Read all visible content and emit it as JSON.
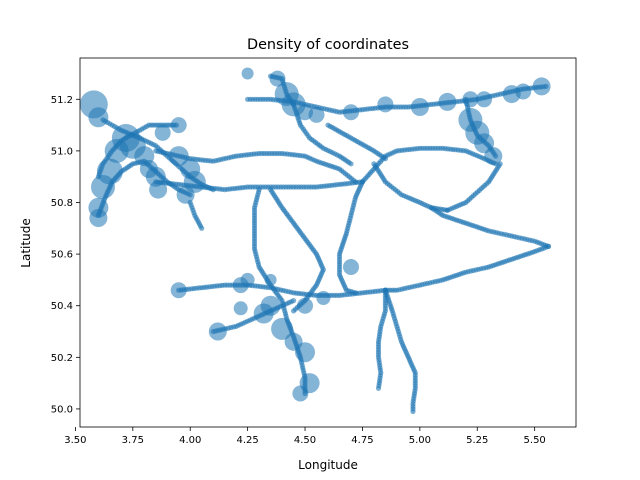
{
  "chart_data": {
    "type": "scatter",
    "title": "Density of coordinates",
    "xlabel": "Longitude",
    "ylabel": "Latitude",
    "xlim": [
      3.52,
      5.68
    ],
    "ylim": [
      49.93,
      51.36
    ],
    "xticks": [
      "3.50",
      "3.75",
      "4.00",
      "4.25",
      "4.50",
      "4.75",
      "5.00",
      "5.25",
      "5.50"
    ],
    "yticks": [
      "50.0",
      "50.2",
      "50.4",
      "50.6",
      "50.8",
      "51.0",
      "51.2"
    ],
    "grid": false,
    "legend": "none",
    "colors": {
      "points": "#1f77b4"
    },
    "routes": [
      [
        [
          3.62,
          51.12
        ],
        [
          3.7,
          51.08
        ],
        [
          3.78,
          51.05
        ],
        [
          3.85,
          51.02
        ],
        [
          3.9,
          50.98
        ],
        [
          3.95,
          50.94
        ],
        [
          4.0,
          50.9
        ],
        [
          4.05,
          50.87
        ],
        [
          4.1,
          50.85
        ]
      ],
      [
        [
          3.6,
          50.9
        ],
        [
          3.62,
          50.95
        ],
        [
          3.66,
          51.0
        ],
        [
          3.7,
          51.04
        ],
        [
          3.74,
          51.06
        ],
        [
          3.78,
          51.08
        ],
        [
          3.82,
          51.1
        ],
        [
          3.86,
          51.1
        ],
        [
          3.9,
          51.1
        ],
        [
          3.94,
          51.1
        ]
      ],
      [
        [
          3.6,
          50.75
        ],
        [
          3.63,
          50.82
        ],
        [
          3.66,
          50.88
        ],
        [
          3.7,
          50.92
        ],
        [
          3.75,
          50.95
        ],
        [
          3.8,
          50.96
        ],
        [
          3.85,
          50.92
        ],
        [
          3.9,
          50.88
        ],
        [
          3.95,
          50.85
        ],
        [
          4.0,
          50.83
        ]
      ],
      [
        [
          3.85,
          51.0
        ],
        [
          3.9,
          50.99
        ],
        [
          4.0,
          50.97
        ],
        [
          4.1,
          50.96
        ],
        [
          4.2,
          50.98
        ],
        [
          4.3,
          50.99
        ],
        [
          4.4,
          50.99
        ],
        [
          4.5,
          50.98
        ],
        [
          4.55,
          50.96
        ],
        [
          4.65,
          50.93
        ],
        [
          4.72,
          50.88
        ]
      ],
      [
        [
          3.85,
          50.88
        ],
        [
          3.95,
          50.87
        ],
        [
          4.05,
          50.86
        ],
        [
          4.15,
          50.85
        ],
        [
          4.25,
          50.86
        ],
        [
          4.35,
          50.86
        ],
        [
          4.45,
          50.86
        ],
        [
          4.55,
          50.86
        ],
        [
          4.65,
          50.87
        ],
        [
          4.75,
          50.88
        ]
      ],
      [
        [
          4.45,
          51.18
        ],
        [
          4.48,
          51.1
        ],
        [
          4.52,
          51.05
        ],
        [
          4.58,
          51.01
        ],
        [
          4.65,
          50.98
        ],
        [
          4.7,
          50.95
        ]
      ],
      [
        [
          4.75,
          50.88
        ],
        [
          4.8,
          50.93
        ],
        [
          4.85,
          50.98
        ],
        [
          4.9,
          51.0
        ],
        [
          5.0,
          51.01
        ],
        [
          5.1,
          51.01
        ],
        [
          5.2,
          51.0
        ],
        [
          5.28,
          50.97
        ],
        [
          5.33,
          50.95
        ]
      ],
      [
        [
          4.8,
          50.95
        ],
        [
          4.85,
          50.88
        ],
        [
          4.92,
          50.83
        ],
        [
          5.0,
          50.8
        ],
        [
          5.05,
          50.78
        ],
        [
          5.12,
          50.77
        ]
      ],
      [
        [
          5.12,
          50.77
        ],
        [
          5.2,
          50.8
        ],
        [
          5.3,
          50.88
        ],
        [
          5.35,
          50.95
        ]
      ],
      [
        [
          5.05,
          50.78
        ],
        [
          5.1,
          50.75
        ],
        [
          5.2,
          50.72
        ],
        [
          5.3,
          50.69
        ],
        [
          5.4,
          50.67
        ],
        [
          5.5,
          50.65
        ],
        [
          5.56,
          50.63
        ]
      ],
      [
        [
          5.56,
          50.63
        ],
        [
          5.5,
          50.61
        ],
        [
          5.4,
          50.58
        ],
        [
          5.3,
          50.55
        ],
        [
          5.2,
          50.53
        ],
        [
          5.1,
          50.5
        ],
        [
          5.0,
          50.48
        ],
        [
          4.9,
          50.46
        ],
        [
          4.85,
          50.46
        ]
      ],
      [
        [
          4.6,
          51.1
        ],
        [
          4.7,
          51.05
        ],
        [
          4.8,
          51.0
        ],
        [
          4.85,
          50.97
        ]
      ],
      [
        [
          4.25,
          51.2
        ],
        [
          4.35,
          51.2
        ],
        [
          4.45,
          51.19
        ],
        [
          4.55,
          51.17
        ],
        [
          4.65,
          51.15
        ],
        [
          4.75,
          51.16
        ],
        [
          4.85,
          51.17
        ],
        [
          4.95,
          51.17
        ],
        [
          5.05,
          51.18
        ],
        [
          5.15,
          51.19
        ],
        [
          5.25,
          51.2
        ],
        [
          5.35,
          51.22
        ],
        [
          5.45,
          51.24
        ],
        [
          5.55,
          51.25
        ]
      ],
      [
        [
          4.35,
          51.29
        ],
        [
          4.4,
          51.28
        ],
        [
          4.42,
          51.22
        ],
        [
          4.45,
          51.18
        ]
      ],
      [
        [
          5.2,
          51.2
        ],
        [
          5.22,
          51.12
        ],
        [
          5.25,
          51.06
        ],
        [
          5.3,
          51.02
        ],
        [
          5.33,
          50.98
        ]
      ],
      [
        [
          4.3,
          50.85
        ],
        [
          4.28,
          50.78
        ],
        [
          4.28,
          50.7
        ],
        [
          4.28,
          50.62
        ],
        [
          4.3,
          50.55
        ],
        [
          4.35,
          50.48
        ],
        [
          4.4,
          50.42
        ],
        [
          4.42,
          50.35
        ],
        [
          4.45,
          50.28
        ],
        [
          4.48,
          50.2
        ],
        [
          4.5,
          50.12
        ],
        [
          4.5,
          50.06
        ]
      ],
      [
        [
          4.35,
          50.85
        ],
        [
          4.4,
          50.78
        ],
        [
          4.45,
          50.72
        ],
        [
          4.5,
          50.66
        ],
        [
          4.55,
          50.6
        ],
        [
          4.58,
          50.54
        ],
        [
          4.55,
          50.48
        ],
        [
          4.5,
          50.42
        ],
        [
          4.45,
          50.38
        ]
      ],
      [
        [
          4.75,
          50.88
        ],
        [
          4.72,
          50.82
        ],
        [
          4.7,
          50.75
        ],
        [
          4.68,
          50.68
        ],
        [
          4.65,
          50.6
        ],
        [
          4.65,
          50.52
        ],
        [
          4.68,
          50.46
        ],
        [
          4.72,
          50.45
        ]
      ],
      [
        [
          3.95,
          50.46
        ],
        [
          4.05,
          50.47
        ],
        [
          4.15,
          50.48
        ],
        [
          4.25,
          50.48
        ],
        [
          4.35,
          50.47
        ],
        [
          4.45,
          50.45
        ],
        [
          4.55,
          50.44
        ],
        [
          4.65,
          50.44
        ],
        [
          4.75,
          50.45
        ],
        [
          4.85,
          50.46
        ]
      ],
      [
        [
          4.85,
          50.46
        ],
        [
          4.88,
          50.38
        ],
        [
          4.9,
          50.32
        ],
        [
          4.92,
          50.26
        ],
        [
          4.95,
          50.2
        ],
        [
          4.98,
          50.14
        ],
        [
          4.98,
          50.08
        ],
        [
          4.97,
          50.02
        ],
        [
          4.97,
          49.99
        ]
      ],
      [
        [
          4.85,
          50.46
        ],
        [
          4.85,
          50.38
        ],
        [
          4.83,
          50.32
        ],
        [
          4.82,
          50.26
        ],
        [
          4.82,
          50.2
        ],
        [
          4.83,
          50.14
        ],
        [
          4.82,
          50.08
        ]
      ],
      [
        [
          4.1,
          50.3
        ],
        [
          4.2,
          50.32
        ],
        [
          4.3,
          50.36
        ],
        [
          4.4,
          50.4
        ],
        [
          4.45,
          50.42
        ]
      ],
      [
        [
          4.0,
          50.8
        ],
        [
          4.02,
          50.75
        ],
        [
          4.05,
          50.7
        ]
      ]
    ],
    "clusters": [
      [
        3.58,
        51.18,
        14
      ],
      [
        3.6,
        51.13,
        10
      ],
      [
        3.6,
        50.78,
        10
      ],
      [
        3.6,
        50.74,
        9
      ],
      [
        3.62,
        50.86,
        12
      ],
      [
        3.65,
        50.92,
        13
      ],
      [
        3.68,
        51.0,
        12
      ],
      [
        3.72,
        51.05,
        14
      ],
      [
        3.75,
        51.02,
        13
      ],
      [
        3.8,
        50.98,
        10
      ],
      [
        3.82,
        50.93,
        9
      ],
      [
        3.85,
        50.9,
        10
      ],
      [
        3.86,
        50.85,
        9
      ],
      [
        3.88,
        51.07,
        8
      ],
      [
        3.95,
        50.98,
        10
      ],
      [
        4.0,
        50.93,
        10
      ],
      [
        4.02,
        50.88,
        11
      ],
      [
        3.98,
        50.83,
        9
      ],
      [
        3.95,
        51.1,
        8
      ],
      [
        4.25,
        51.3,
        6
      ],
      [
        4.38,
        51.28,
        8
      ],
      [
        4.42,
        51.22,
        12
      ],
      [
        4.45,
        51.18,
        12
      ],
      [
        4.5,
        51.15,
        8
      ],
      [
        4.55,
        51.14,
        8
      ],
      [
        4.7,
        51.15,
        8
      ],
      [
        4.85,
        51.18,
        8
      ],
      [
        5.0,
        51.17,
        9
      ],
      [
        5.12,
        51.19,
        9
      ],
      [
        5.22,
        51.2,
        8
      ],
      [
        5.28,
        51.2,
        8
      ],
      [
        5.4,
        51.22,
        9
      ],
      [
        5.45,
        51.23,
        8
      ],
      [
        5.53,
        51.25,
        9
      ],
      [
        5.22,
        51.12,
        12
      ],
      [
        5.25,
        51.07,
        12
      ],
      [
        5.28,
        51.03,
        10
      ],
      [
        5.32,
        50.98,
        9
      ],
      [
        4.12,
        50.3,
        9
      ],
      [
        4.22,
        50.48,
        8
      ],
      [
        4.25,
        50.5,
        7
      ],
      [
        4.32,
        50.37,
        10
      ],
      [
        4.35,
        50.4,
        10
      ],
      [
        4.4,
        50.31,
        11
      ],
      [
        4.45,
        50.26,
        9
      ],
      [
        4.5,
        50.22,
        10
      ],
      [
        4.52,
        50.1,
        10
      ],
      [
        4.48,
        50.06,
        8
      ],
      [
        4.35,
        50.5,
        6
      ],
      [
        4.5,
        50.4,
        8
      ],
      [
        4.58,
        50.43,
        7
      ],
      [
        4.7,
        50.55,
        8
      ],
      [
        3.95,
        50.46,
        8
      ],
      [
        4.22,
        50.39,
        7
      ]
    ]
  }
}
